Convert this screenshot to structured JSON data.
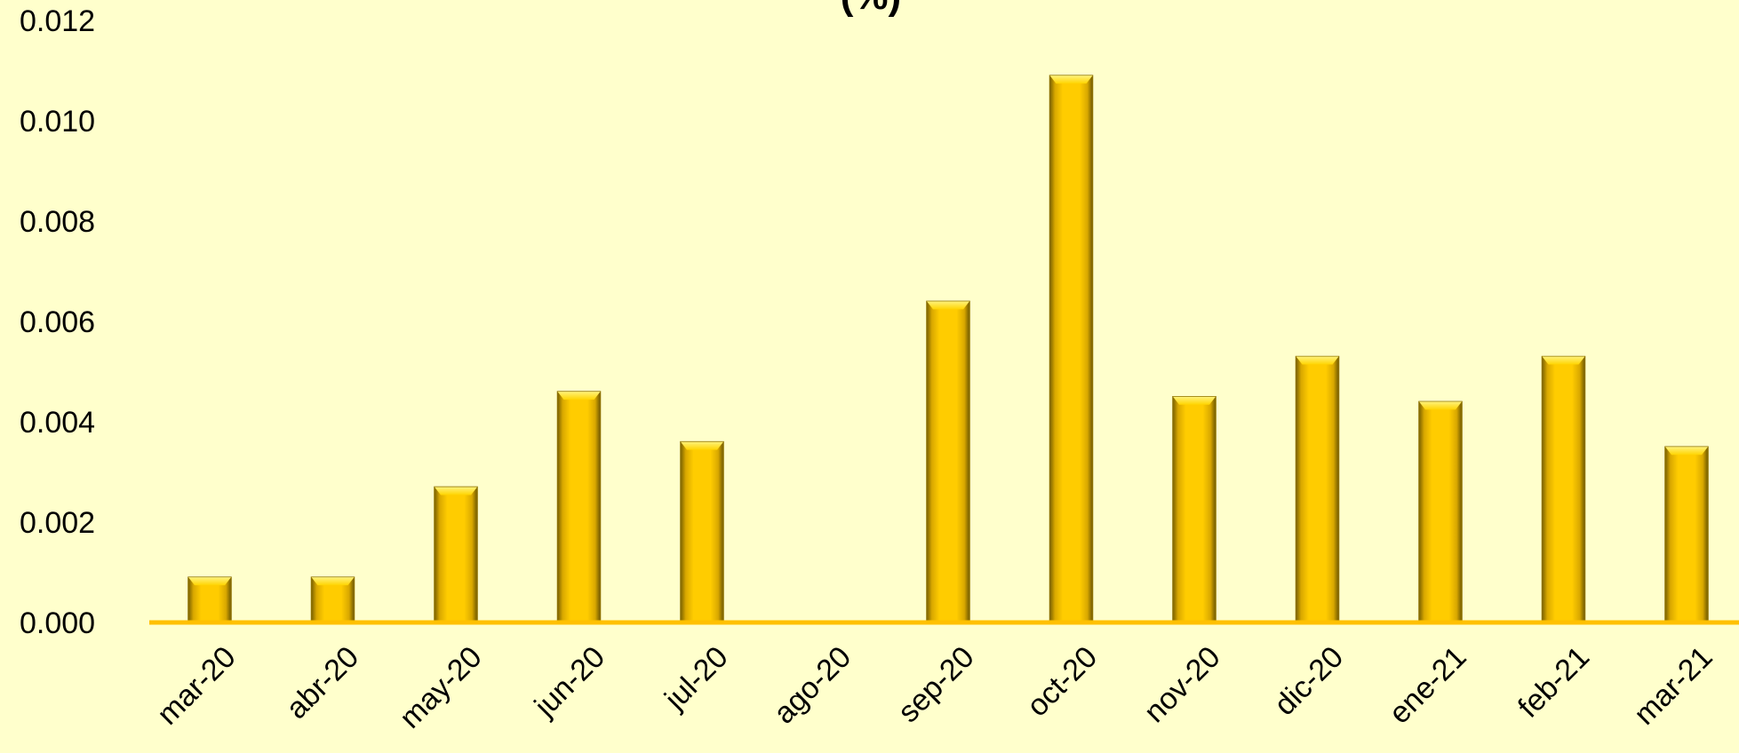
{
  "chart_data": {
    "type": "bar",
    "title": "(%)",
    "xlabel": "",
    "ylabel": "",
    "categories": [
      "mar-20",
      "abr-20",
      "may-20",
      "jun-20",
      "jul-20",
      "ago-20",
      "sep-20",
      "oct-20",
      "nov-20",
      "dic-20",
      "ene-21",
      "feb-21",
      "mar-21"
    ],
    "values": [
      0.0009,
      0.0009,
      0.0027,
      0.0046,
      0.0036,
      0.0,
      0.0064,
      0.0109,
      0.0045,
      0.0053,
      0.0044,
      0.0053,
      0.0035
    ],
    "yticks": [
      "0.000",
      "0.002",
      "0.004",
      "0.006",
      "0.008",
      "0.010",
      "0.012"
    ],
    "ylim": [
      0,
      0.012
    ],
    "grid": false,
    "legend": "none",
    "colors": {
      "background": "#FFFFCC",
      "bar": "#FFCC00",
      "axis": "#FFC000"
    }
  }
}
